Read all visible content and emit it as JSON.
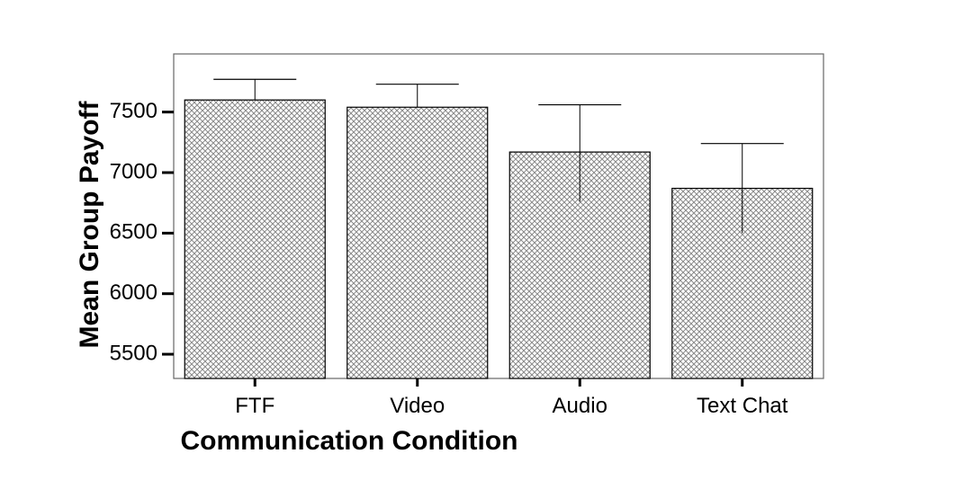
{
  "chart_data": {
    "type": "bar",
    "title": "",
    "xlabel": "Communication Condition",
    "ylabel": "Mean Group Payoff",
    "categories": [
      "FTF",
      "Video",
      "Audio",
      "Text Chat"
    ],
    "values": [
      7600,
      7540,
      7170,
      6870
    ],
    "error_bars": {
      "upper": [
        7770,
        7730,
        7560,
        7240
      ],
      "lower": [
        7600,
        7540,
        6760,
        6500
      ]
    },
    "ylim": [
      5300,
      7980
    ],
    "y_ticks": [
      5500,
      6000,
      6500,
      7000,
      7500
    ],
    "grid": false,
    "legend": "none",
    "bar_fill": "crosshatch",
    "colors": {
      "bar_stroke": "#000000",
      "hatch": "#8a8a8a",
      "frame": "#666666"
    }
  }
}
